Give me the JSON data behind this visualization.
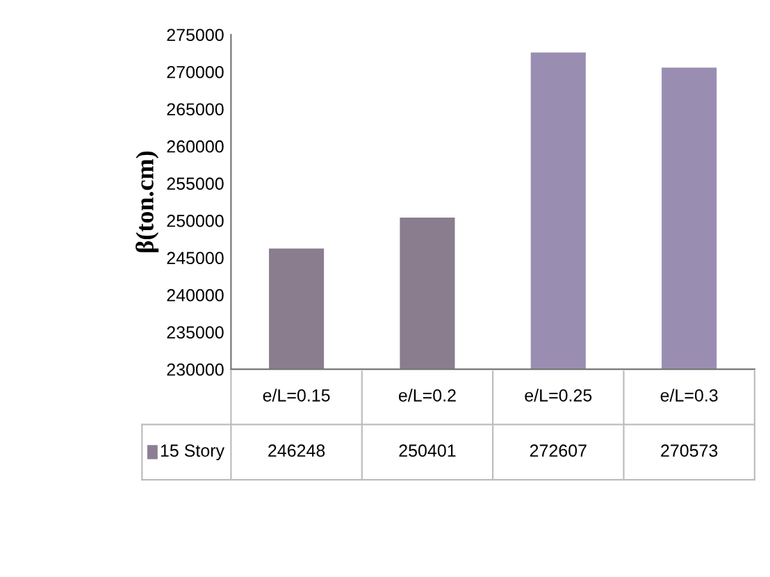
{
  "chart_data": {
    "type": "bar",
    "ylabel": "β(ton.cm)",
    "categories": [
      "e/L=0.15",
      "e/L=0.2",
      "e/L=0.25",
      "e/L=0.3"
    ],
    "series": [
      {
        "name": "15 Story",
        "color": "#8c7f93",
        "colors": [
          "#8a7d8e",
          "#8a7d8e",
          "#9a8db2",
          "#9a8db2"
        ],
        "values": [
          246248,
          250401,
          272607,
          270573
        ]
      }
    ],
    "ylim": [
      230000,
      275000
    ],
    "yticks": [
      230000,
      235000,
      240000,
      245000,
      250000,
      255000,
      260000,
      265000,
      270000,
      275000
    ],
    "data_labels": true,
    "grid": false,
    "legend": "bottom"
  }
}
